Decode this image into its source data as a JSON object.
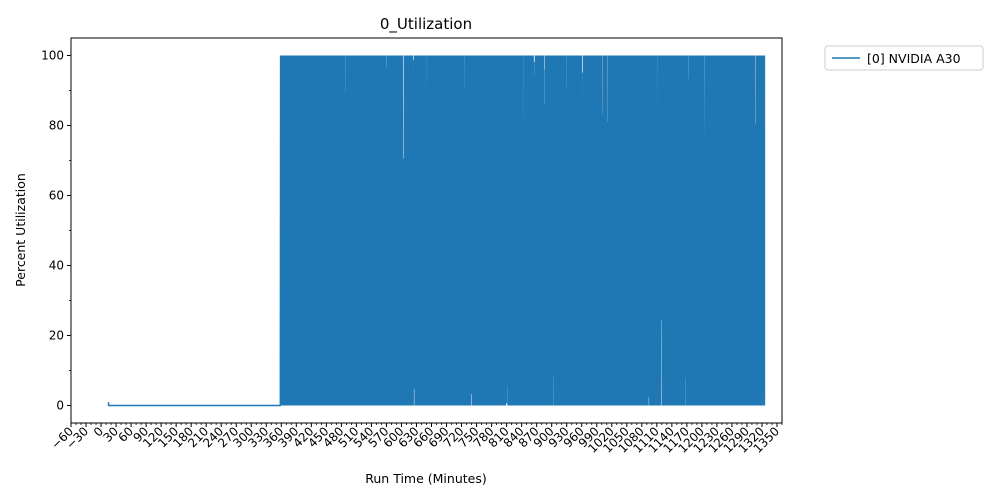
{
  "chart_data": {
    "type": "line",
    "title": "0_Utilization",
    "xlabel": "Run Time (Minutes)",
    "ylabel": "Percent Utilization",
    "xlim": [
      -60,
      1360
    ],
    "ylim": [
      -5,
      105
    ],
    "x_ticks": [
      -60,
      -30,
      0,
      30,
      60,
      90,
      120,
      150,
      180,
      210,
      240,
      270,
      300,
      330,
      360,
      390,
      420,
      450,
      480,
      510,
      540,
      570,
      600,
      630,
      660,
      690,
      720,
      750,
      780,
      810,
      840,
      870,
      900,
      930,
      960,
      990,
      1020,
      1050,
      1080,
      1110,
      1140,
      1170,
      1200,
      1230,
      1260,
      1290,
      1320,
      1350
    ],
    "x_tick_labels": [
      "−60",
      "−30",
      "0",
      "30",
      "60",
      "90",
      "120",
      "150",
      "180",
      "210",
      "240",
      "270",
      "300",
      "330",
      "360",
      "390",
      "420",
      "450",
      "480",
      "510",
      "540",
      "570",
      "600",
      "630",
      "660",
      "690",
      "720",
      "750",
      "780",
      "810",
      "840",
      "870",
      "900",
      "930",
      "960",
      "990",
      "1020",
      "1050",
      "1080",
      "1110",
      "1140",
      "1170",
      "1200",
      "1230",
      "1260",
      "1290",
      "1320",
      "1350"
    ],
    "y_ticks": [
      0,
      20,
      40,
      60,
      80,
      100
    ],
    "y_tick_labels": [
      "0",
      "20",
      "40",
      "60",
      "80",
      "100"
    ],
    "grid": false,
    "legend_position": "outside-top-right",
    "series": [
      {
        "name": "[0] NVIDIA A30",
        "color": "#1f77b4",
        "idle_segment": {
          "x": [
            15,
            15,
            16,
            358
          ],
          "y": [
            1,
            0,
            0,
            0
          ]
        },
        "busy_range": [
          358,
          1325
        ],
        "busy_min": 0,
        "busy_max": 100
      }
    ]
  }
}
